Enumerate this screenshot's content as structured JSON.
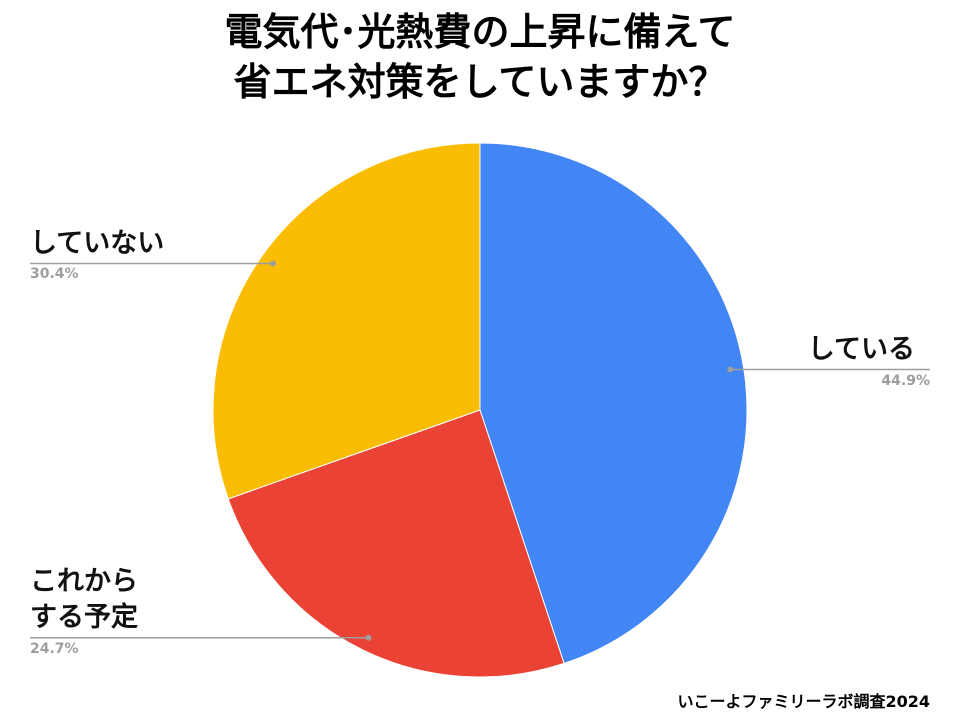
{
  "chart_data": {
    "type": "pie",
    "title": [
      "電気代･光熱費の上昇に備えて",
      "省エネ対策をしていますか？"
    ],
    "categories": [
      "している",
      "これから\nする予定",
      "していない"
    ],
    "values": [
      44.9,
      24.7,
      30.4
    ],
    "value_labels": [
      "44.9%",
      "24.7%",
      "30.4%"
    ],
    "colors": [
      "#4285f4",
      "#ea4335",
      "#fbbc04"
    ],
    "source": "いこーよファミリーラボ調査2024"
  }
}
